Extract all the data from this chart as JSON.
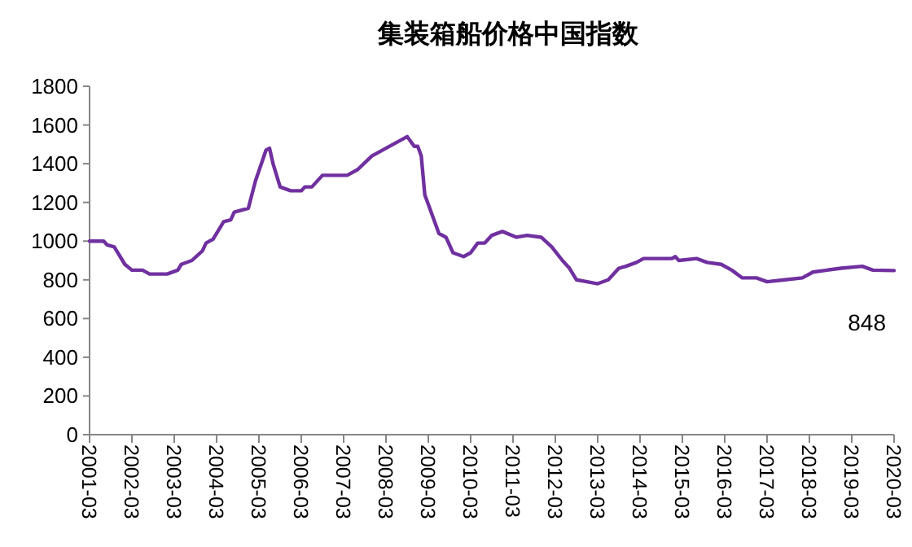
{
  "chart_data": {
    "type": "line",
    "title": "集装箱船价格中国指数",
    "x": [
      "2001-03",
      "2001-07",
      "2001-08",
      "2001-10",
      "2002-01",
      "2002-03",
      "2002-06",
      "2002-08",
      "2003-01",
      "2003-04",
      "2003-05",
      "2003-08",
      "2003-11",
      "2003-12",
      "2004-02",
      "2004-05",
      "2004-07",
      "2004-08",
      "2004-12",
      "2005-02",
      "2005-05",
      "2005-06",
      "2005-07",
      "2005-09",
      "2005-12",
      "2006-03",
      "2006-04",
      "2006-06",
      "2006-09",
      "2007-04",
      "2007-07",
      "2007-11",
      "2008-03",
      "2008-07",
      "2008-09",
      "2008-11",
      "2008-12",
      "2009-01",
      "2009-02",
      "2009-04",
      "2009-06",
      "2009-08",
      "2009-10",
      "2010-01",
      "2010-03",
      "2010-05",
      "2010-07",
      "2010-09",
      "2010-12",
      "2011-04",
      "2011-07",
      "2011-11",
      "2012-02",
      "2012-05",
      "2012-07",
      "2012-09",
      "2012-12",
      "2013-03",
      "2013-06",
      "2013-09",
      "2013-11",
      "2014-02",
      "2014-04",
      "2014-12",
      "2015-01",
      "2015-02",
      "2015-07",
      "2015-10",
      "2016-02",
      "2016-05",
      "2016-08",
      "2016-12",
      "2017-03",
      "2017-08",
      "2018-01",
      "2018-04",
      "2018-08",
      "2018-12",
      "2019-06",
      "2019-09",
      "2020-03"
    ],
    "series": [
      {
        "color": "#7030a0",
        "values": [
          1000,
          1000,
          980,
          970,
          880,
          850,
          850,
          830,
          830,
          850,
          880,
          900,
          950,
          990,
          1010,
          1100,
          1110,
          1150,
          1170,
          1310,
          1470,
          1480,
          1400,
          1280,
          1260,
          1260,
          1280,
          1280,
          1340,
          1340,
          1370,
          1440,
          1480,
          1520,
          1540,
          1490,
          1490,
          1440,
          1240,
          1140,
          1040,
          1020,
          940,
          920,
          940,
          990,
          990,
          1030,
          1050,
          1020,
          1030,
          1020,
          970,
          900,
          860,
          800,
          790,
          780,
          800,
          860,
          870,
          890,
          910,
          910,
          920,
          900,
          910,
          890,
          880,
          850,
          810,
          810,
          790,
          800,
          810,
          840,
          850,
          860,
          870,
          850,
          848
        ]
      }
    ],
    "xlim": [
      "2001-03",
      "2020-03"
    ],
    "xticks": [
      "2001-03",
      "2002-03",
      "2003-03",
      "2004-03",
      "2005-03",
      "2006-03",
      "2007-03",
      "2008-03",
      "2009-03",
      "2010-03",
      "2011-03",
      "2012-03",
      "2013-03",
      "2014-03",
      "2015-03",
      "2016-03",
      "2017-03",
      "2018-03",
      "2019-03",
      "2020-03"
    ],
    "ylim": [
      0,
      1800
    ],
    "yticks": [
      0,
      200,
      400,
      600,
      800,
      1000,
      1200,
      1400,
      1600,
      1800
    ],
    "grid": false,
    "annotations": [
      "848"
    ]
  }
}
